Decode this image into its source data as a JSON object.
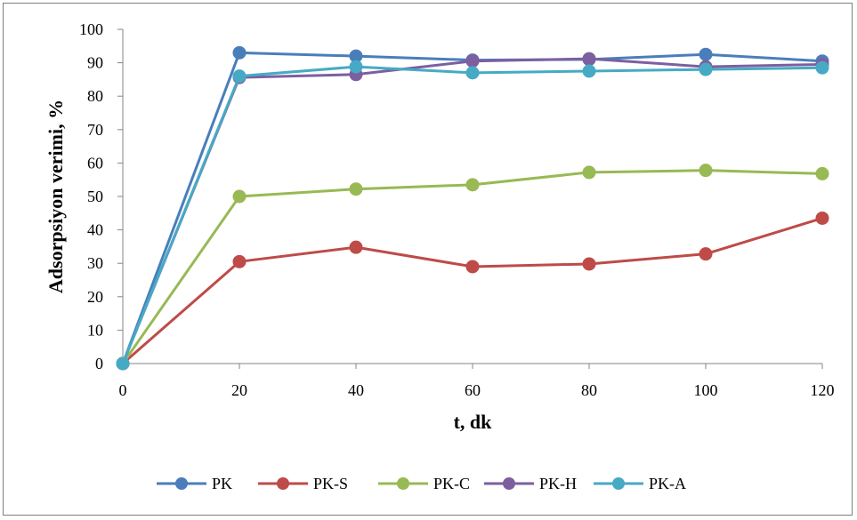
{
  "chart_data": {
    "type": "line",
    "title": "",
    "xlabel": "t, dk",
    "ylabel": "Adsorpsiyon verimi,  %",
    "x": [
      0,
      20,
      40,
      60,
      80,
      100,
      120
    ],
    "xlim": [
      0,
      120
    ],
    "ylim": [
      0,
      100
    ],
    "xticks": [
      0,
      20,
      40,
      60,
      80,
      100,
      120
    ],
    "yticks": [
      0,
      10,
      20,
      30,
      40,
      50,
      60,
      70,
      80,
      90,
      100
    ],
    "grid": false,
    "legend": "bottom",
    "series": [
      {
        "name": "PK",
        "color": "#4a7ebb",
        "values": [
          0,
          93.0,
          92.0,
          90.8,
          91.0,
          92.5,
          90.5
        ]
      },
      {
        "name": "PK-S",
        "color": "#be4b48",
        "values": [
          0,
          30.5,
          34.8,
          29.0,
          29.8,
          32.8,
          43.5
        ]
      },
      {
        "name": "PK-C",
        "color": "#98b954",
        "values": [
          0,
          50.0,
          52.2,
          53.5,
          57.2,
          57.8,
          56.8
        ]
      },
      {
        "name": "PK-H",
        "color": "#7d5fa0",
        "values": [
          0,
          85.6,
          86.5,
          90.5,
          91.2,
          88.8,
          89.5
        ]
      },
      {
        "name": "PK-A",
        "color": "#46aac5",
        "values": [
          0,
          86.0,
          88.8,
          87.0,
          87.5,
          88.0,
          88.5
        ]
      }
    ]
  }
}
